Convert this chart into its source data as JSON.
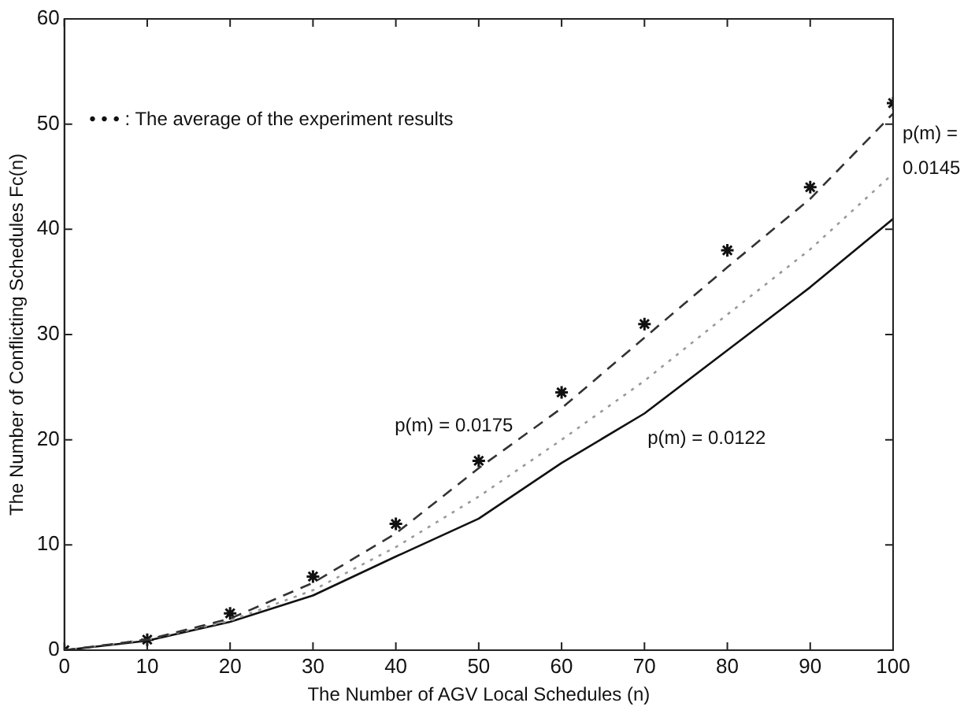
{
  "chart_data": {
    "type": "line",
    "xlabel": "The Number of AGV Local Schedules (n)",
    "ylabel": "The Number of Conflicting Schedules Fc(n)",
    "x": [
      0,
      10,
      20,
      30,
      40,
      50,
      60,
      70,
      80,
      90,
      100
    ],
    "series": [
      {
        "color": "#333333",
        "line_style": "dashed",
        "marker": "none",
        "values": [
          0,
          1.0,
          3.0,
          6.4,
          11.1,
          17.3,
          23,
          29.7,
          36.4,
          42.9,
          51
        ]
      },
      {
        "color": "#999999",
        "line_style": "dotted",
        "marker": "none",
        "values": [
          0,
          1,
          2.8,
          5.7,
          9.8,
          14.6,
          20,
          25.6,
          31.9,
          38.1,
          45.3
        ]
      },
      {
        "color": "#111111",
        "line_style": "solid",
        "marker": "none",
        "values": [
          0,
          0.9,
          2.7,
          5.2,
          8.9,
          12.5,
          17.8,
          22.5,
          28.5,
          34.5,
          41
        ]
      },
      {
        "type": "scatter",
        "color": "#111111",
        "marker": "cross",
        "values": [
          0,
          1,
          3.5,
          7,
          12,
          18,
          24.5,
          31,
          38,
          44,
          52
        ]
      }
    ],
    "xlim": [
      0,
      100
    ],
    "xticks": [
      0,
      10,
      20,
      30,
      40,
      50,
      60,
      70,
      80,
      90,
      100
    ],
    "ylim": [
      0,
      60
    ],
    "yticks": [
      0,
      10,
      20,
      30,
      40,
      50,
      60
    ],
    "grid": false,
    "annotations": [
      "• • • : The average of the experiment results",
      "p(m) = 0.0175",
      "p(m) = 0.0122",
      "p(m) = 0.0145"
    ]
  }
}
